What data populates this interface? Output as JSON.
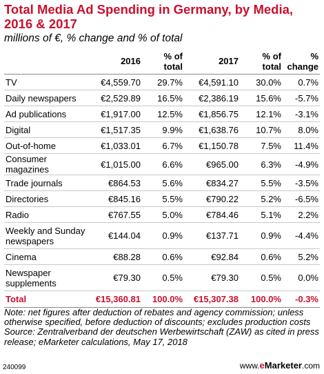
{
  "title": "Total Media Ad Spending in Germany, by Media, 2016 & 2017",
  "subtitle": "millions of €, % change and % of total",
  "chart_data": {
    "type": "table",
    "columns": [
      "",
      "2016",
      "% of total",
      "2017",
      "% of total",
      "% change"
    ],
    "rows": [
      [
        "TV",
        "€4,559.70",
        "29.7%",
        "€4,591.10",
        "30.0%",
        "0.7%"
      ],
      [
        "Daily newspapers",
        "€2,529.89",
        "16.5%",
        "€2,386.19",
        "15.6%",
        "-5.7%"
      ],
      [
        "Ad publications",
        "€1,917.00",
        "12.5%",
        "€1,856.75",
        "12.1%",
        "-3.1%"
      ],
      [
        "Digital",
        "€1,517.35",
        "9.9%",
        "€1,638.76",
        "10.7%",
        "8.0%"
      ],
      [
        "Out-of-home",
        "€1,033.01",
        "6.7%",
        "€1,150.78",
        "7.5%",
        "11.4%"
      ],
      [
        "Consumer magazines",
        "€1,015.00",
        "6.6%",
        "€965.00",
        "6.3%",
        "-4.9%"
      ],
      [
        "Trade journals",
        "€864.53",
        "5.6%",
        "€834.27",
        "5.5%",
        "-3.5%"
      ],
      [
        "Directories",
        "€845.16",
        "5.5%",
        "€790.22",
        "5.2%",
        "-6.5%"
      ],
      [
        "Radio",
        "€767.55",
        "5.0%",
        "€784.46",
        "5.1%",
        "2.2%"
      ],
      [
        "Weekly and Sunday newspapers",
        "€144.04",
        "0.9%",
        "€137.71",
        "0.9%",
        "-4.4%"
      ],
      [
        "Cinema",
        "€88.28",
        "0.6%",
        "€92.84",
        "0.6%",
        "5.2%"
      ],
      [
        "Newspaper supplements",
        "€79.30",
        "0.5%",
        "€79.30",
        "0.5%",
        "0.0%"
      ]
    ],
    "total": [
      "Total",
      "€15,360.81",
      "100.0%",
      "€15,307.38",
      "100.0%",
      "-0.3%"
    ]
  },
  "note": "Note: net figures after deduction of rebates and agency commission; unless otherwise specified, before deduction of discounts; excludes production costs",
  "source": "Source: Zentralverband der deutschen Werbewirtschaft (ZAW) as cited in press release; eMarketer calculations, May 17, 2018",
  "chart_id": "240099",
  "brand": {
    "prefix": "www.",
    "e": "e",
    "rest": "Marketer",
    "suffix": ".com"
  },
  "colors": {
    "accent": "#c8102e"
  }
}
